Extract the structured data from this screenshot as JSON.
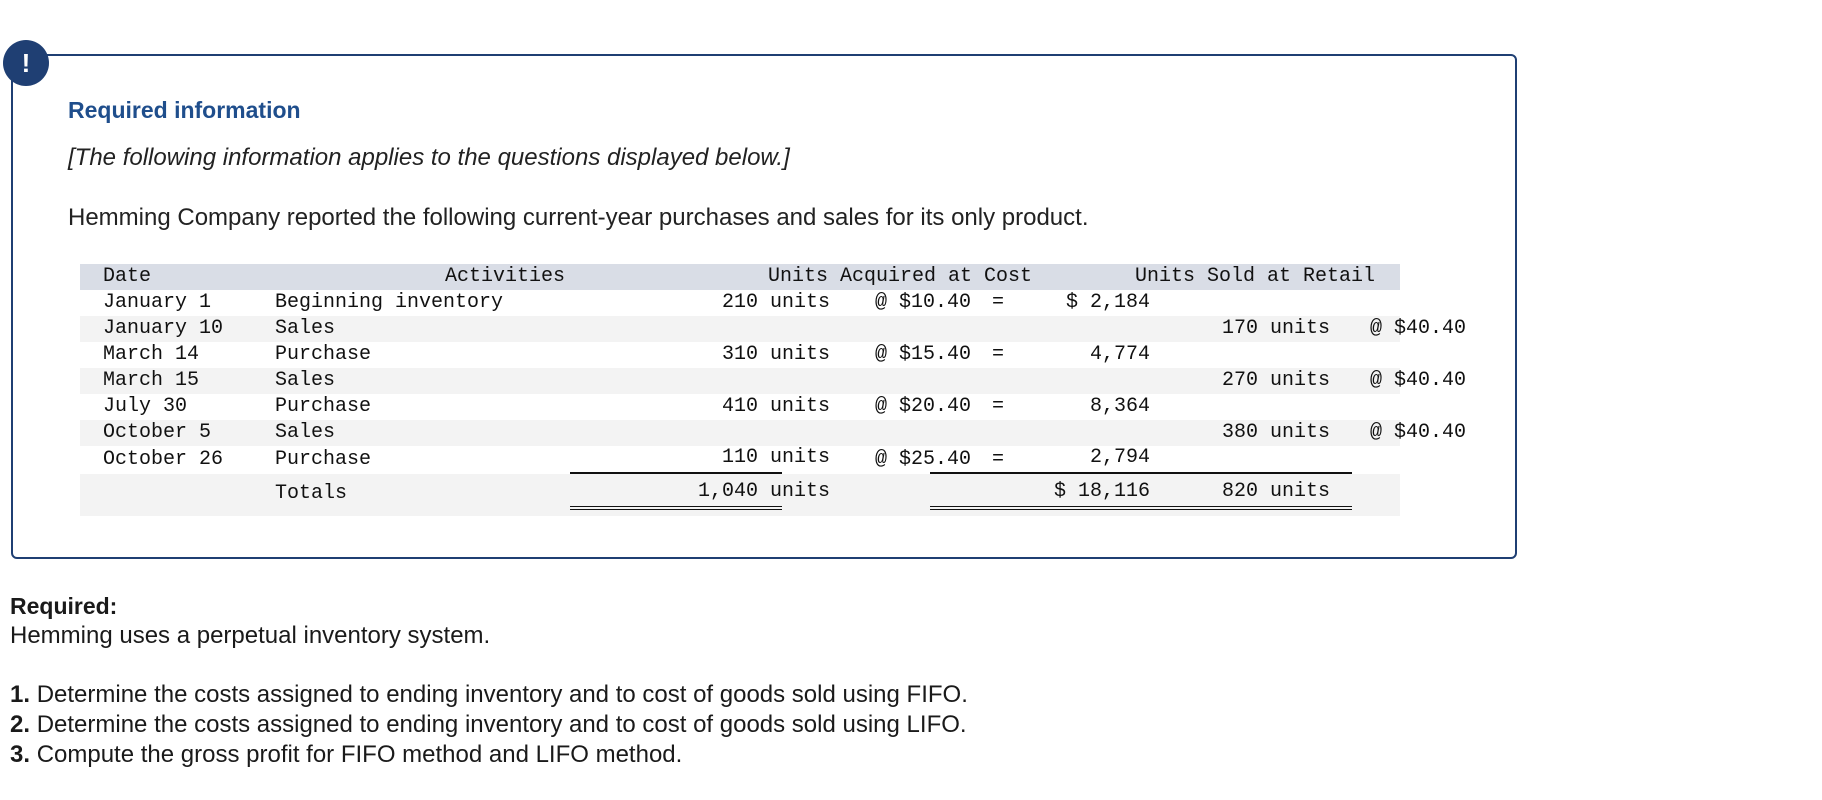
{
  "box": {
    "badge": "!",
    "title": "Required information",
    "note": "[The following information applies to the questions displayed below.]",
    "intro": "Hemming Company reported the following current-year purchases and sales for its only product."
  },
  "table": {
    "headers": {
      "date": "Date",
      "activities": "Activities",
      "acquired": "Units Acquired at Cost",
      "sold": "Units Sold at Retail"
    },
    "rows": [
      {
        "date": "January 1",
        "activity": "Beginning inventory",
        "units": "210 units",
        "rate": "@ $10.40",
        "eq": "=",
        "cost": "$ 2,184",
        "sold_units": "",
        "sold_rate": ""
      },
      {
        "date": "January 10",
        "activity": "Sales",
        "units": "",
        "rate": "",
        "eq": "",
        "cost": "",
        "sold_units": "170 units",
        "sold_rate": "@ $40.40"
      },
      {
        "date": "March 14",
        "activity": "Purchase",
        "units": "310 units",
        "rate": "@ $15.40",
        "eq": "=",
        "cost": "4,774",
        "sold_units": "",
        "sold_rate": ""
      },
      {
        "date": "March 15",
        "activity": "Sales",
        "units": "",
        "rate": "",
        "eq": "",
        "cost": "",
        "sold_units": "270 units",
        "sold_rate": "@ $40.40"
      },
      {
        "date": "July 30",
        "activity": "Purchase",
        "units": "410 units",
        "rate": "@ $20.40",
        "eq": "=",
        "cost": "8,364",
        "sold_units": "",
        "sold_rate": ""
      },
      {
        "date": "October 5",
        "activity": "Sales",
        "units": "",
        "rate": "",
        "eq": "",
        "cost": "",
        "sold_units": "380 units",
        "sold_rate": "@ $40.40"
      },
      {
        "date": "October 26",
        "activity": "Purchase",
        "units": "110 units",
        "rate": "@ $25.40",
        "eq": "=",
        "cost": "2,794",
        "sold_units": "",
        "sold_rate": ""
      }
    ],
    "totals": {
      "label": "Totals",
      "units": "1,040 units",
      "cost": "$ 18,116",
      "sold_units": "820 units"
    }
  },
  "required": {
    "label": "Required:",
    "system": "Hemming uses a perpetual inventory system.",
    "questions": [
      {
        "num": "1.",
        "text": "Determine the costs assigned to ending inventory and to cost of goods sold using FIFO."
      },
      {
        "num": "2.",
        "text": "Determine the costs assigned to ending inventory and to cost of goods sold using LIFO."
      },
      {
        "num": "3.",
        "text": "Compute the gross profit for FIFO method and LIFO method."
      }
    ]
  }
}
